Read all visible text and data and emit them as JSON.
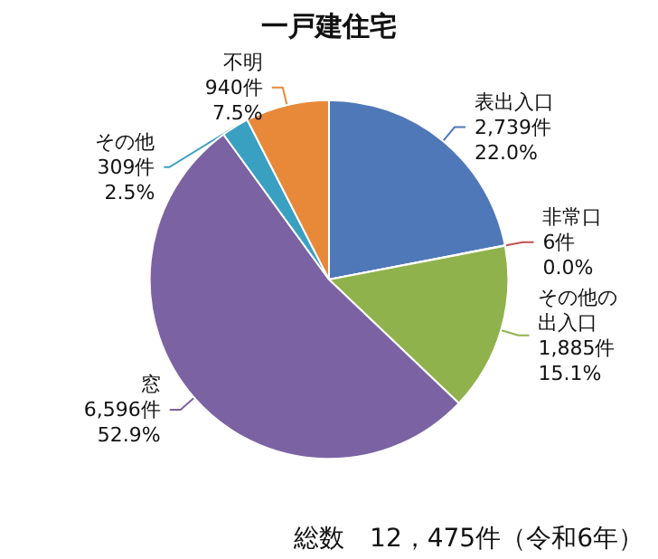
{
  "chart_data": {
    "type": "pie",
    "title": "一戸建住宅",
    "categories": [
      "表出入口",
      "非常口",
      "その他の出入口",
      "窓",
      "その他",
      "不明"
    ],
    "values": [
      2739,
      6,
      1885,
      6596,
      309,
      940
    ],
    "value_labels": [
      "2,739件\n22.0%",
      "6件\n0.0%",
      "1,885件\n15.1%",
      "6,596件\n52.9%",
      "309件\n2.5%",
      "940件\n7.5%"
    ],
    "colors": [
      "#4f78b8",
      "#c0504d",
      "#8fb24c",
      "#7b62a3",
      "#3aa0c2",
      "#e8893a"
    ],
    "annotations": [
      "総数　12，475件（令和6年）"
    ],
    "legend": false
  }
}
